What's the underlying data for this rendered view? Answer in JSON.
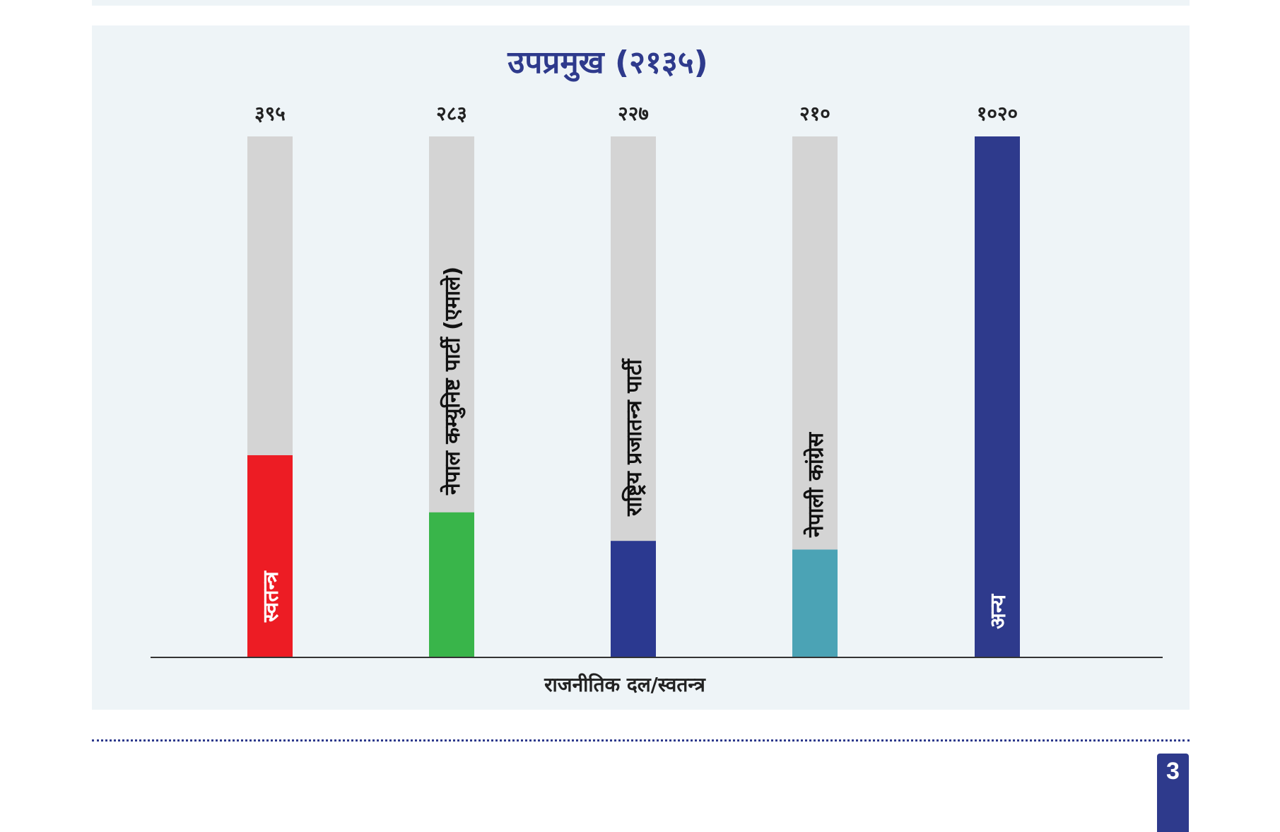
{
  "page": {
    "number": "3"
  },
  "chart_data": {
    "type": "bar",
    "title": "उपप्रमुख (२१३५)",
    "xlabel": "राजनीतिक दल/स्वतन्त्र",
    "ylabel": "",
    "ylim": [
      0,
      1020
    ],
    "grid": false,
    "background_bar": true,
    "categories": [
      "स्वतन्त्र",
      "नेपाल कम्युनिष्ट पार्टी (एमाले)",
      "राष्ट्रिय प्रजातन्त्र पार्टी",
      "नेपाली कांग्रेस",
      "अन्य"
    ],
    "values": [
      395,
      283,
      227,
      210,
      1020
    ],
    "value_labels": [
      "३९५",
      "२८३",
      "२२७",
      "२१०",
      "१०२०"
    ],
    "colors": [
      "#ed1c24",
      "#39b54a",
      "#2b3990",
      "#4ba3b5",
      "#2e3a8c"
    ],
    "background_color": "#d4d4d4",
    "label_colors": [
      "#ffffff",
      "#111111",
      "#111111",
      "#111111",
      "#ffffff"
    ]
  }
}
